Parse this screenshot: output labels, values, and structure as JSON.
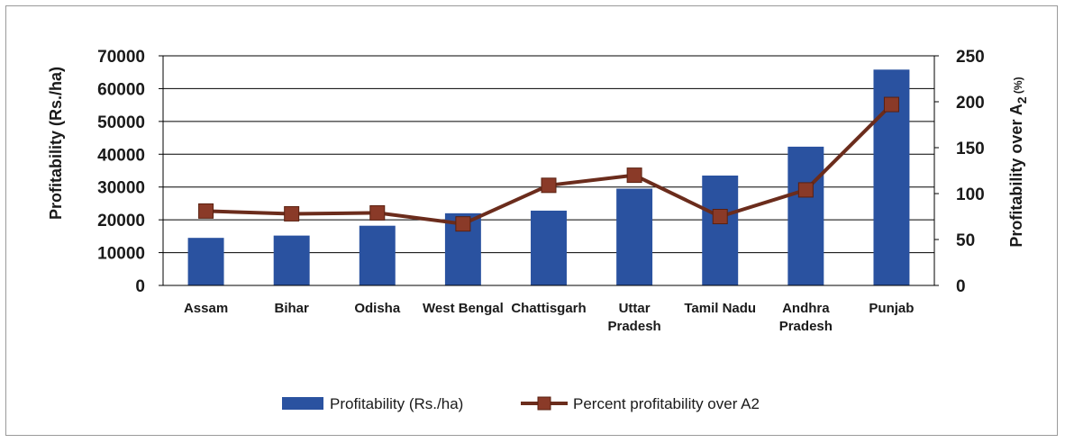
{
  "chart_data": {
    "type": "bar",
    "categories": [
      [
        "Assam"
      ],
      [
        "Bihar"
      ],
      [
        "Odisha"
      ],
      [
        "West Bengal"
      ],
      [
        "Chattisgarh"
      ],
      [
        "Uttar",
        "Pradesh"
      ],
      [
        "Tamil Nadu"
      ],
      [
        "Andhra",
        "Pradesh"
      ],
      [
        "Punjab"
      ]
    ],
    "series": [
      {
        "name": "Profitability (Rs./ha)",
        "kind": "bar",
        "axis": "left",
        "color": "#2a52a0",
        "values": [
          14500,
          15200,
          18200,
          22000,
          22800,
          29500,
          33500,
          42300,
          65800
        ]
      },
      {
        "name": "Percent profitability over A2",
        "kind": "line",
        "axis": "right",
        "color": "#6b2c1c",
        "marker_color": "#8a3a28",
        "values": [
          81,
          78,
          79,
          67,
          109,
          120,
          75,
          104,
          197
        ]
      }
    ],
    "ylabel_left": "Profitability (Rs./ha)",
    "ylabel_right_main": "Profitability over A",
    "ylabel_right_sub": "2",
    "ylabel_right_unit": " (%)",
    "ylim_left": [
      0,
      70000
    ],
    "yticks_left": [
      "0",
      "10000",
      "20000",
      "30000",
      "40000",
      "50000",
      "60000",
      "70000"
    ],
    "ylim_right": [
      0,
      250
    ],
    "yticks_right": [
      "0",
      "50",
      "100",
      "150",
      "200",
      "250"
    ],
    "grid": true,
    "legend_position": "bottom",
    "gridline_color": "#000000"
  }
}
